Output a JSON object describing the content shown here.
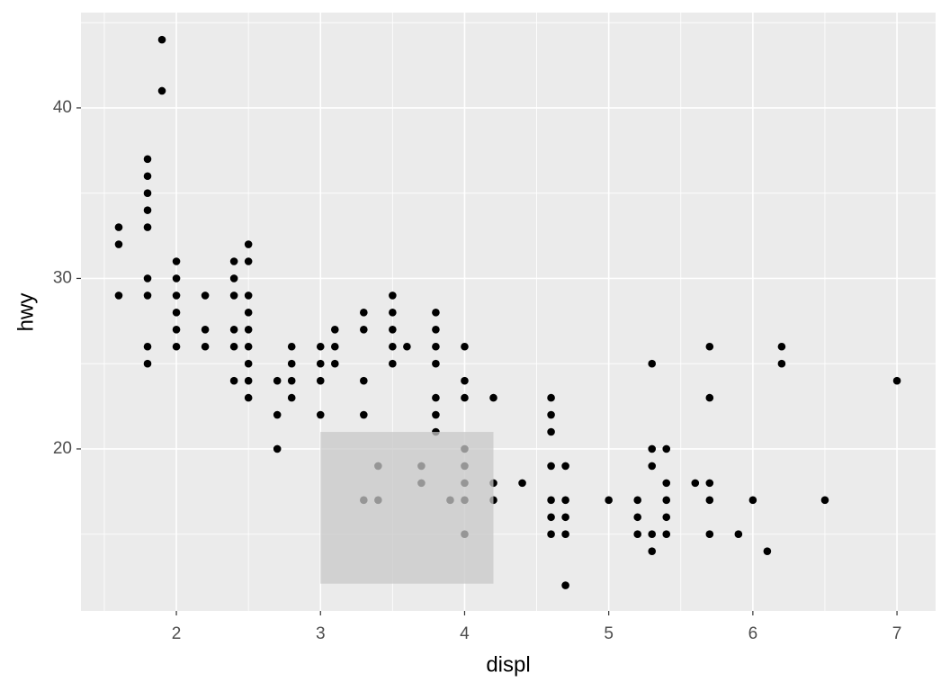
{
  "chart_data": {
    "type": "scatter",
    "x_label": "displ",
    "y_label": "hwy",
    "xlim": [
      1.338,
      7.268
    ],
    "ylim": [
      10.5,
      45.59
    ],
    "xticks": [
      2,
      3,
      4,
      5,
      6,
      7
    ],
    "yticks": [
      20,
      30,
      40
    ],
    "xminor": [
      1.5,
      2.5,
      3.5,
      4.5,
      5.5,
      6.5
    ],
    "yminor": [
      15,
      25,
      35,
      45
    ],
    "grid": true,
    "panel_color": "#ebebeb",
    "color": "#000000",
    "brush": {
      "xmin": 3.0,
      "xmax": 4.2,
      "ymin": 12.1,
      "ymax": 21.0,
      "color": "#c8c8c8"
    },
    "x": [
      1.6,
      1.6,
      1.6,
      1.8,
      1.8,
      1.8,
      1.8,
      1.8,
      1.8,
      1.8,
      1.8,
      1.8,
      1.9,
      1.9,
      2.0,
      2.0,
      2.0,
      2.0,
      2.0,
      2.0,
      2.2,
      2.2,
      2.2,
      2.4,
      2.4,
      2.4,
      2.4,
      2.4,
      2.4,
      2.5,
      2.5,
      2.5,
      2.5,
      2.5,
      2.5,
      2.5,
      2.5,
      2.5,
      2.7,
      2.7,
      2.7,
      2.8,
      2.8,
      2.8,
      2.8,
      3.0,
      3.0,
      3.0,
      3.0,
      3.1,
      3.1,
      3.1,
      3.3,
      3.3,
      3.3,
      3.3,
      3.3,
      3.4,
      3.4,
      3.5,
      3.5,
      3.5,
      3.5,
      3.5,
      3.6,
      3.7,
      3.7,
      3.8,
      3.8,
      3.8,
      3.8,
      3.8,
      3.8,
      3.8,
      3.9,
      4.0,
      4.0,
      4.0,
      4.0,
      4.0,
      4.0,
      4.0,
      4.0,
      4.2,
      4.2,
      4.2,
      4.4,
      4.6,
      4.6,
      4.6,
      4.6,
      4.6,
      4.6,
      4.6,
      4.7,
      4.7,
      4.7,
      4.7,
      4.7,
      5.0,
      5.2,
      5.2,
      5.2,
      5.3,
      5.3,
      5.3,
      5.3,
      5.3,
      5.4,
      5.4,
      5.4,
      5.4,
      5.4,
      5.6,
      5.7,
      5.7,
      5.7,
      5.7,
      5.7,
      5.9,
      6.0,
      6.1,
      6.2,
      6.2,
      6.5,
      7.0
    ],
    "y": [
      33,
      32,
      29,
      37,
      36,
      35,
      34,
      33,
      30,
      29,
      26,
      25,
      44,
      41,
      31,
      30,
      29,
      28,
      27,
      26,
      29,
      27,
      26,
      31,
      30,
      29,
      27,
      26,
      24,
      32,
      31,
      29,
      28,
      27,
      26,
      25,
      24,
      23,
      24,
      22,
      20,
      26,
      25,
      24,
      23,
      26,
      25,
      24,
      22,
      27,
      26,
      25,
      28,
      27,
      24,
      22,
      17,
      19,
      17,
      29,
      28,
      27,
      26,
      25,
      26,
      19,
      18,
      28,
      27,
      26,
      25,
      23,
      22,
      21,
      17,
      26,
      24,
      23,
      20,
      19,
      18,
      17,
      15,
      23,
      18,
      17,
      18,
      23,
      22,
      21,
      19,
      17,
      16,
      15,
      19,
      17,
      16,
      15,
      12,
      17,
      17,
      16,
      15,
      25,
      20,
      19,
      15,
      14,
      20,
      18,
      17,
      16,
      15,
      18,
      26,
      23,
      18,
      17,
      15,
      15,
      17,
      14,
      26,
      25,
      17,
      24
    ]
  }
}
